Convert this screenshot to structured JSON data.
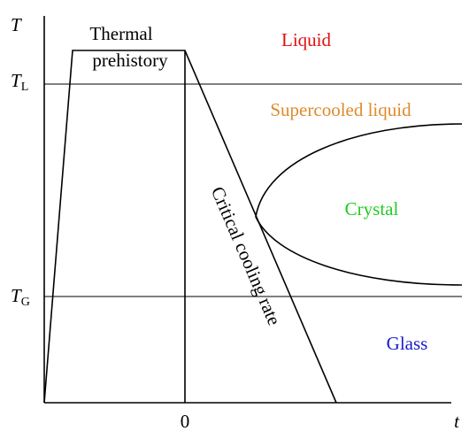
{
  "axes": {
    "y_label": "T",
    "x_label": "t",
    "x_origin": "0",
    "liquidus": {
      "symbol": "T",
      "subscript": "L"
    },
    "glass_transition": {
      "symbol": "T",
      "subscript": "G"
    }
  },
  "regions": {
    "thermal_prehistory": [
      "Thermal",
      "prehistory"
    ],
    "liquid": "Liquid",
    "supercooled_liquid": "Supercooled liquid",
    "crystal": "Crystal",
    "glass": "Glass"
  },
  "critical_cooling_rate": "Critical cooling rate"
}
